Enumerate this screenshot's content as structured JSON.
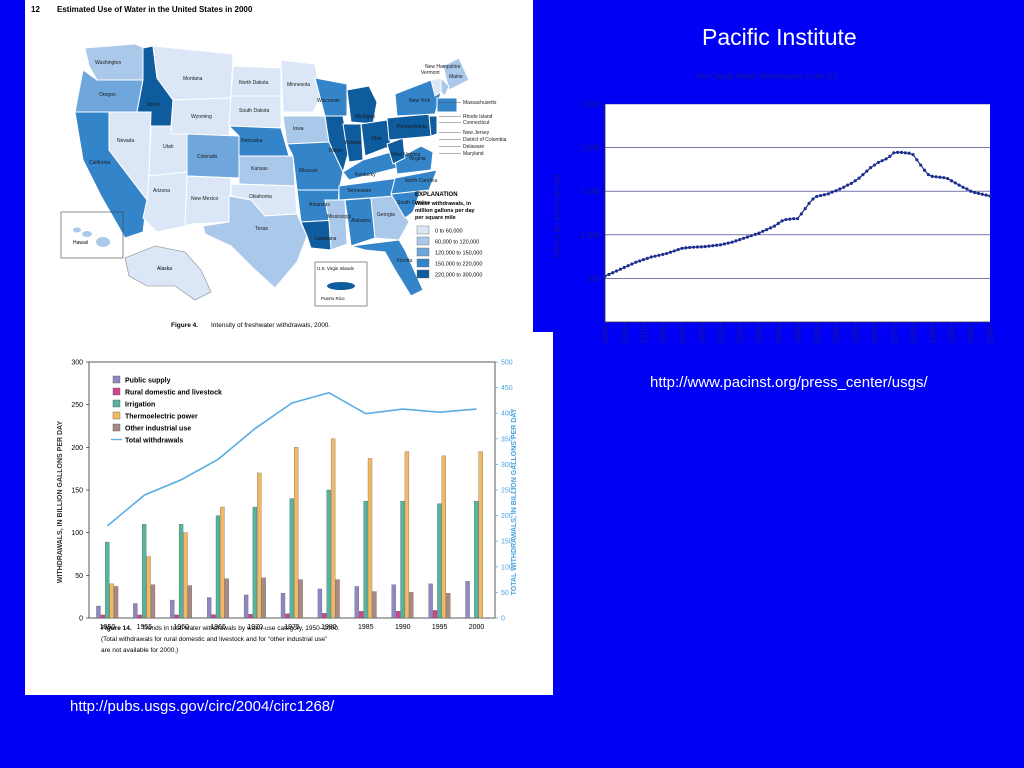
{
  "slide": {
    "title": "Pacific Institute",
    "url_pacinst": "http://www.pacinst.org/press_center/usgs/",
    "url_usgs": "http://pubs.usgs.gov/circ/2004/circ1268/",
    "background": "#0000f5"
  },
  "map": {
    "page_number": "12",
    "title": "Estimated Use of Water in the United States in 2000",
    "caption_label": "Figure 4.",
    "caption_text": "Intensity of freshwater withdrawals, 2000.",
    "explanation_title": "EXPLANATION",
    "explanation_sub": [
      "Water withdrawals, in",
      "million gallons per day",
      "per square mile"
    ],
    "legend": [
      {
        "label": "0 to 60,000",
        "color": "#dbe7f6"
      },
      {
        "label": "60,000 to 120,000",
        "color": "#a9c8ea"
      },
      {
        "label": "120,000 to 150,000",
        "color": "#6fa6dc"
      },
      {
        "label": "150,000 to 220,000",
        "color": "#3384c8"
      },
      {
        "label": "220,000 to 300,000",
        "color": "#0e5c9e"
      }
    ],
    "state_labels": [
      "Washington",
      "Oregon",
      "California",
      "Idaho",
      "Nevada",
      "Montana",
      "Wyoming",
      "Utah",
      "Arizona",
      "Colorado",
      "New Mexico",
      "North Dakota",
      "South Dakota",
      "Nebraska",
      "Kansas",
      "Oklahoma",
      "Texas",
      "Minnesota",
      "Iowa",
      "Missouri",
      "Arkansas",
      "Louisiana",
      "Wisconsin",
      "Illinois",
      "Michigan",
      "Indiana",
      "Ohio",
      "Kentucky",
      "Tennessee",
      "Mississippi",
      "Alabama",
      "Georgia",
      "Florida",
      "South Carolina",
      "North Carolina",
      "Virginia",
      "West Virginia",
      "Pennsylvania",
      "New York",
      "Maine",
      "Vermont",
      "New Hampshire",
      "Hawaii",
      "Alaska"
    ],
    "side_labels": [
      "Massachusetts",
      "Rhode Island",
      "Connecticut",
      "New Jersey",
      "District of Columbia",
      "Delaware",
      "Maryland"
    ],
    "inset_label": "U.S. Virgin Islands",
    "inset_label2": "Puerto Rico"
  },
  "chart_data": [
    {
      "type": "bar",
      "title": "",
      "xlabel": "",
      "ylabel": "WITHDRAWALS, IN BILLION GALLONS PER DAY",
      "y2label": "TOTAL WITHDRAWALS, IN BILLION GALLONS PER DAY",
      "ylim": [
        0,
        300
      ],
      "y2lim": [
        0,
        500
      ],
      "yticks": [
        0,
        50,
        100,
        150,
        200,
        250,
        300
      ],
      "y2ticks": [
        0,
        50,
        100,
        150,
        200,
        250,
        300,
        350,
        400,
        450,
        500
      ],
      "categories": [
        "1950",
        "1955",
        "1960",
        "1965",
        "1970",
        "1975",
        "1980",
        "1985",
        "1990",
        "1995",
        "2000"
      ],
      "legend_position": "top-left",
      "series": [
        {
          "name": "Public supply",
          "color": "#8f88c2",
          "values": [
            14,
            17,
            21,
            24,
            27,
            29,
            34,
            37,
            39,
            40,
            43
          ]
        },
        {
          "name": "Rural domestic and livestock",
          "color": "#d0458e",
          "values": [
            3.6,
            3.6,
            3.6,
            4.0,
            4.5,
            4.9,
            5.6,
            7.8,
            7.9,
            8.9,
            null
          ]
        },
        {
          "name": "Irrigation",
          "color": "#55b39e",
          "values": [
            89,
            110,
            110,
            120,
            130,
            140,
            150,
            137,
            137,
            134,
            137
          ]
        },
        {
          "name": "Thermoelectric power",
          "color": "#f2b863",
          "values": [
            40,
            72,
            100,
            130,
            170,
            200,
            210,
            187,
            195,
            190,
            195
          ]
        },
        {
          "name": "Other industrial use",
          "color": "#a98a82",
          "values": [
            37,
            39,
            38,
            46,
            47,
            45,
            45,
            31,
            30,
            29,
            null
          ]
        }
      ],
      "line_series": {
        "name": "Total withdrawals",
        "color": "#5aaee4",
        "axis": "right",
        "values": [
          180,
          240,
          270,
          310,
          370,
          420,
          440,
          399,
          408,
          402,
          408
        ]
      },
      "caption_label": "Figure 14.",
      "caption_lines": [
        "Trends in total water withdrawals by water-use category, 1950–2000.",
        "(Total withdrawals for rural domestic and livestock and for “other industrial use”",
        "are not available for 2000.)"
      ]
    },
    {
      "type": "line",
      "title": "Per Capita Water Withdrawals in the US",
      "ylabel": "Gallons per person per day",
      "xlabel": "",
      "ylim": [
        0,
        2500
      ],
      "yticks": [
        500,
        1000,
        1500,
        2000,
        2500
      ],
      "ytick_labels": [
        "500",
        "1,000",
        "1,500",
        "2,000",
        "2,500"
      ],
      "xlim": [
        1900,
        2000
      ],
      "xticks": [
        "1900",
        "1905",
        "1910",
        "1915",
        "1920",
        "1925",
        "1930",
        "1935",
        "1940",
        "1945",
        "1950",
        "1955",
        "1960",
        "1965",
        "1970",
        "1975",
        "1980",
        "1985",
        "1990",
        "1995",
        "2000"
      ],
      "grid": true,
      "series": [
        {
          "color": "#1f2f8f",
          "x": [
            1900,
            1901,
            1902,
            1903,
            1904,
            1905,
            1906,
            1907,
            1908,
            1909,
            1910,
            1911,
            1912,
            1913,
            1914,
            1915,
            1916,
            1917,
            1918,
            1919,
            1920,
            1921,
            1922,
            1923,
            1924,
            1925,
            1926,
            1927,
            1928,
            1929,
            1930,
            1931,
            1932,
            1933,
            1934,
            1935,
            1936,
            1937,
            1938,
            1939,
            1940,
            1941,
            1942,
            1943,
            1944,
            1945,
            1946,
            1947,
            1948,
            1949,
            1950,
            1951,
            1952,
            1953,
            1954,
            1955,
            1956,
            1957,
            1958,
            1959,
            1960,
            1961,
            1962,
            1963,
            1964,
            1965,
            1966,
            1967,
            1968,
            1969,
            1970,
            1971,
            1972,
            1973,
            1974,
            1975,
            1976,
            1977,
            1978,
            1979,
            1980,
            1981,
            1982,
            1983,
            1984,
            1985,
            1986,
            1987,
            1988,
            1989,
            1990,
            1991,
            1992,
            1993,
            1994,
            1995,
            1996,
            1997,
            1998,
            1999,
            2000
          ],
          "y": [
            525,
            545,
            565,
            585,
            605,
            625,
            645,
            665,
            685,
            700,
            715,
            730,
            745,
            755,
            765,
            775,
            785,
            800,
            815,
            830,
            845,
            850,
            855,
            858,
            860,
            862,
            865,
            870,
            875,
            880,
            885,
            895,
            905,
            915,
            930,
            945,
            960,
            975,
            990,
            1005,
            1020,
            1040,
            1060,
            1080,
            1100,
            1130,
            1160,
            1175,
            1180,
            1185,
            1185,
            1240,
            1300,
            1360,
            1410,
            1440,
            1450,
            1460,
            1470,
            1490,
            1505,
            1525,
            1545,
            1570,
            1590,
            1620,
            1650,
            1690,
            1730,
            1770,
            1800,
            1830,
            1850,
            1870,
            1900,
            1940,
            1945,
            1945,
            1940,
            1935,
            1920,
            1860,
            1800,
            1740,
            1690,
            1670,
            1665,
            1660,
            1655,
            1645,
            1620,
            1595,
            1570,
            1545,
            1525,
            1500,
            1485,
            1475,
            1465,
            1455,
            1445
          ]
        }
      ]
    }
  ]
}
